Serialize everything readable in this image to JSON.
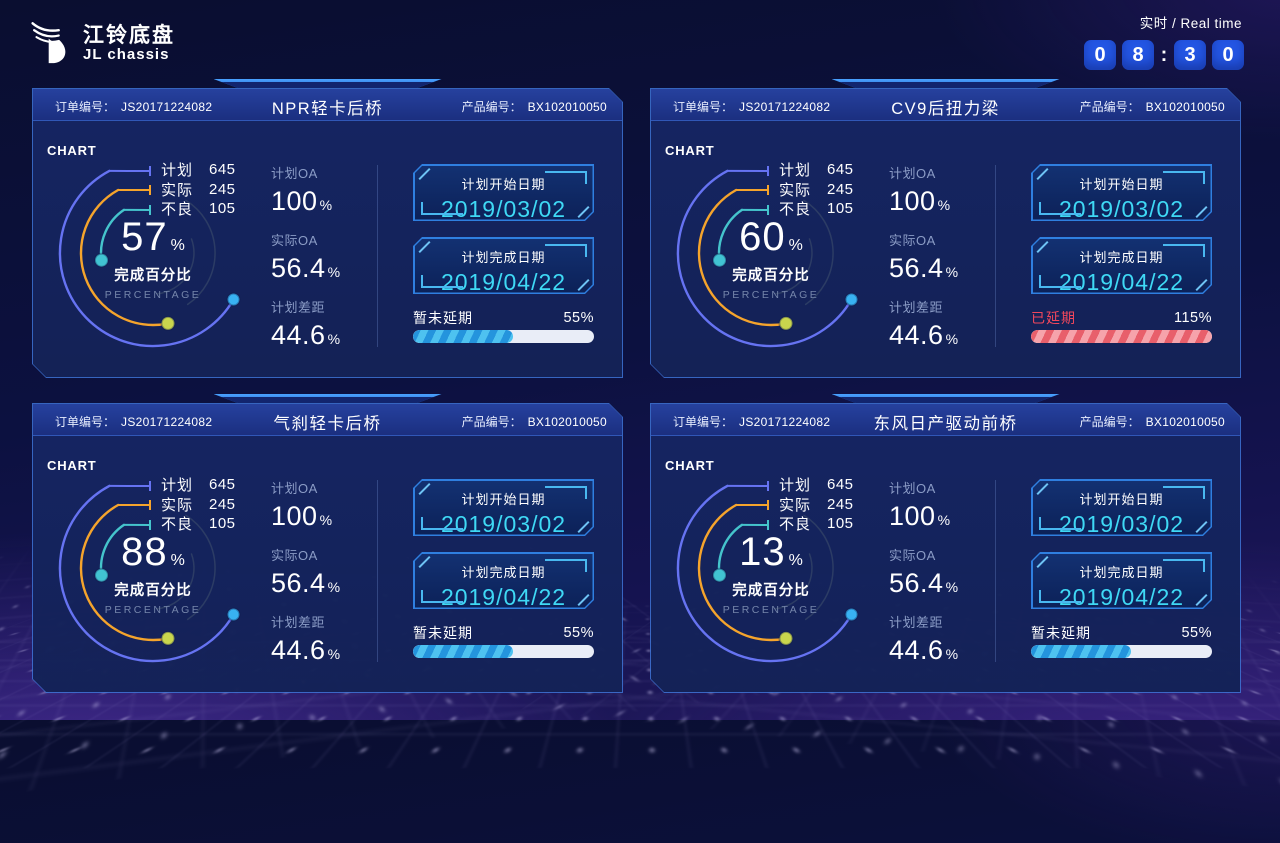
{
  "logo": {
    "title_cn": "江铃底盘",
    "title_en": "JL chassis"
  },
  "realtime": {
    "label": "实时 / Real time",
    "digits": [
      "0",
      "8",
      "3",
      "0"
    ],
    "separator": ":"
  },
  "shared": {
    "chart_label": "CHART",
    "order_label": "订单编号：",
    "product_label": "产品编号：",
    "legend": [
      {
        "label": "计划",
        "value": "645",
        "color": "#6673f2"
      },
      {
        "label": "实际",
        "value": "245",
        "color": "#f5a42c"
      },
      {
        "label": "不良",
        "value": "105",
        "color": "#45c4cc"
      }
    ],
    "gauge_caption_cn": "完成百分比",
    "gauge_caption_en": "PERCENTAGE",
    "percent_unit": "%",
    "stats": [
      {
        "label": "计划OA",
        "value": "100",
        "unit": "%"
      },
      {
        "label": "实际OA",
        "value": "56.4",
        "unit": "%"
      },
      {
        "label": "计划差距",
        "value": "44.6",
        "unit": "%"
      }
    ],
    "date_boxes": [
      {
        "label": "计划开始日期",
        "value": "2019/03/02"
      },
      {
        "label": "计划完成日期",
        "value": "2019/04/22"
      }
    ],
    "colors": {
      "date_value": "#3fd9f5",
      "delay_ok_fill": "#2e9fe3",
      "delay_late_fill": "#ee6570",
      "delay_late_text": "#f2475c",
      "digit_box": "#2456e4",
      "dot_plan_end": "#38b2f2",
      "dot_actual_end": "#c9d64d",
      "dot_defect_end": "#41c3d2"
    }
  },
  "panels": [
    {
      "order_no": "JS20171224082",
      "title": "NPR轻卡后桥",
      "product_no": "BX102010050",
      "percent": "57",
      "delay": {
        "label": "暂未延期",
        "value": "55%",
        "progress": 55,
        "state": "normal"
      }
    },
    {
      "order_no": "JS20171224082",
      "title": "CV9后扭力梁",
      "product_no": "BX102010050",
      "percent": "60",
      "delay": {
        "label": "已延期",
        "value": "115%",
        "progress": 100,
        "state": "delayed"
      }
    },
    {
      "order_no": "JS20171224082",
      "title": "气刹轻卡后桥",
      "product_no": "BX102010050",
      "percent": "88",
      "delay": {
        "label": "暂未延期",
        "value": "55%",
        "progress": 55,
        "state": "normal"
      }
    },
    {
      "order_no": "JS20171224082",
      "title": "东风日产驱动前桥",
      "product_no": "BX102010050",
      "percent": "13",
      "delay": {
        "label": "暂未延期",
        "value": "55%",
        "progress": 55,
        "state": "normal"
      }
    }
  ],
  "chart_data": {
    "type": "gauge",
    "gauges": [
      {
        "title": "NPR轻卡后桥",
        "percent": 57,
        "plan": 645,
        "actual": 245,
        "defect": 105,
        "plan_oa": "100%",
        "actual_oa": "56.4%",
        "plan_gap": "44.6%",
        "start_date": "2019/03/02",
        "finish_date": "2019/04/22",
        "delay_label": "暂未延期",
        "delay_percent": "55%"
      },
      {
        "title": "CV9后扭力梁",
        "percent": 60,
        "plan": 645,
        "actual": 245,
        "defect": 105,
        "plan_oa": "100%",
        "actual_oa": "56.4%",
        "plan_gap": "44.6%",
        "start_date": "2019/03/02",
        "finish_date": "2019/04/22",
        "delay_label": "已延期",
        "delay_percent": "115%"
      },
      {
        "title": "气刹轻卡后桥",
        "percent": 88,
        "plan": 645,
        "actual": 245,
        "defect": 105,
        "plan_oa": "100%",
        "actual_oa": "56.4%",
        "plan_gap": "44.6%",
        "start_date": "2019/03/02",
        "finish_date": "2019/04/22",
        "delay_label": "暂未延期",
        "delay_percent": "55%"
      },
      {
        "title": "东风日产驱动前桥",
        "percent": 13,
        "plan": 645,
        "actual": 245,
        "defect": 105,
        "plan_oa": "100%",
        "actual_oa": "56.4%",
        "plan_gap": "44.6%",
        "start_date": "2019/03/02",
        "finish_date": "2019/04/22",
        "delay_label": "暂未延期",
        "delay_percent": "55%"
      }
    ]
  }
}
